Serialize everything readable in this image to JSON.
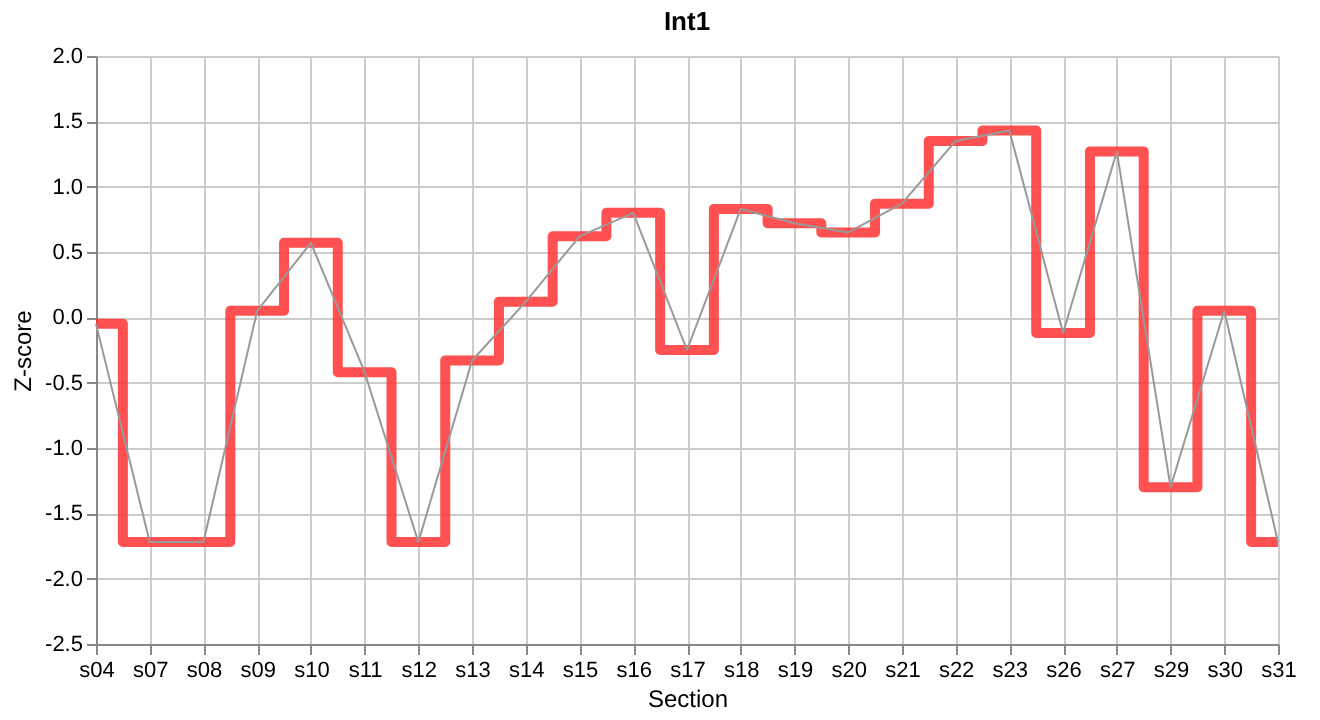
{
  "chart_data": {
    "type": "line",
    "title": "Int1",
    "xlabel": "Section",
    "ylabel": "Z-score",
    "categories": [
      "s04",
      "s07",
      "s08",
      "s09",
      "s10",
      "s11",
      "s12",
      "s13",
      "s14",
      "s15",
      "s16",
      "s17",
      "s18",
      "s19",
      "s20",
      "s21",
      "s22",
      "s23",
      "s26",
      "s27",
      "s29",
      "s30",
      "s31"
    ],
    "series": [
      {
        "type": "step",
        "color": "#ff3333",
        "values": [
          -0.05,
          -1.72,
          -1.72,
          0.05,
          0.57,
          -0.42,
          -1.72,
          -0.33,
          0.12,
          0.62,
          0.8,
          -0.25,
          0.83,
          0.72,
          0.65,
          0.87,
          1.35,
          1.43,
          -0.12,
          1.27,
          -1.3,
          0.05,
          -1.72
        ]
      },
      {
        "type": "line",
        "color": "#999999",
        "values": [
          -0.05,
          -1.72,
          -1.72,
          0.05,
          0.57,
          -0.42,
          -1.72,
          -0.33,
          0.12,
          0.62,
          0.8,
          -0.25,
          0.83,
          0.72,
          0.65,
          0.87,
          1.35,
          1.43,
          -0.12,
          1.27,
          -1.3,
          0.05,
          -1.72
        ]
      }
    ],
    "ylim": [
      -2.5,
      2.0
    ],
    "yticks": [
      {
        "value": -2.5,
        "label": "-2.5"
      },
      {
        "value": -2,
        "label": "-2.0"
      },
      {
        "value": -1.5,
        "label": "-1.5"
      },
      {
        "value": -1,
        "label": "-1.0"
      },
      {
        "value": -0.5,
        "label": "-0.5"
      },
      {
        "value": 0,
        "label": "0.0"
      },
      {
        "value": 0.5,
        "label": "0.5"
      },
      {
        "value": 1,
        "label": "1.0"
      },
      {
        "value": 1.5,
        "label": "1.5"
      },
      {
        "value": 2,
        "label": "2.0"
      }
    ],
    "grid": true
  }
}
